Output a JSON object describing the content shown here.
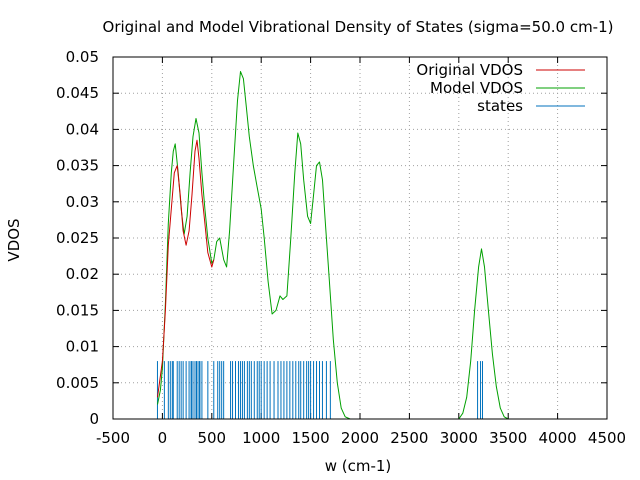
{
  "chart_data": {
    "type": "line",
    "title": "Original and Model Vibrational Density of States (sigma=50.0 cm-1)",
    "xlabel": "w (cm-1)",
    "ylabel": "VDOS",
    "xlim": [
      -500,
      4500
    ],
    "ylim": [
      0,
      0.05
    ],
    "xticks": [
      -500,
      0,
      500,
      1000,
      1500,
      2000,
      2500,
      3000,
      3500,
      4000,
      4500
    ],
    "xtick_labels": [
      "-500",
      "0",
      "500",
      "1000",
      "1500",
      "2000",
      "2500",
      "3000",
      "3500",
      "4000",
      "4500"
    ],
    "yticks": [
      0,
      0.005,
      0.01,
      0.015,
      0.02,
      0.025,
      0.03,
      0.035,
      0.04,
      0.045,
      0.05
    ],
    "ytick_labels": [
      "0",
      "0.005",
      "0.01",
      "0.015",
      "0.02",
      "0.025",
      "0.03",
      "0.035",
      "0.04",
      "0.045",
      "0.05"
    ],
    "grid": true,
    "legend_position": "top-right",
    "series": [
      {
        "name": "Original VDOS",
        "color": "#cc0000",
        "points": [
          [
            -50,
            0.003
          ],
          [
            0,
            0.008
          ],
          [
            30,
            0.015
          ],
          [
            60,
            0.024
          ],
          [
            90,
            0.029
          ],
          [
            120,
            0.034
          ],
          [
            150,
            0.035
          ],
          [
            180,
            0.031
          ],
          [
            210,
            0.026
          ],
          [
            240,
            0.024
          ],
          [
            270,
            0.026
          ],
          [
            300,
            0.031
          ],
          [
            330,
            0.037
          ],
          [
            350,
            0.0385
          ],
          [
            370,
            0.036
          ],
          [
            400,
            0.031
          ],
          [
            430,
            0.027
          ],
          [
            460,
            0.023
          ],
          [
            500,
            0.021
          ],
          [
            520,
            0.022
          ]
        ]
      },
      {
        "name": "Model VDOS",
        "color": "#00a000",
        "points": [
          [
            -50,
            0.002
          ],
          [
            -20,
            0.004
          ],
          [
            0,
            0.007
          ],
          [
            30,
            0.016
          ],
          [
            60,
            0.027
          ],
          [
            90,
            0.034
          ],
          [
            110,
            0.037
          ],
          [
            130,
            0.038
          ],
          [
            160,
            0.034
          ],
          [
            190,
            0.029
          ],
          [
            220,
            0.0255
          ],
          [
            250,
            0.028
          ],
          [
            280,
            0.034
          ],
          [
            310,
            0.039
          ],
          [
            340,
            0.0415
          ],
          [
            370,
            0.0395
          ],
          [
            400,
            0.034
          ],
          [
            430,
            0.029
          ],
          [
            460,
            0.025
          ],
          [
            500,
            0.0215
          ],
          [
            520,
            0.022
          ],
          [
            550,
            0.0245
          ],
          [
            580,
            0.025
          ],
          [
            620,
            0.022
          ],
          [
            650,
            0.021
          ],
          [
            680,
            0.026
          ],
          [
            720,
            0.035
          ],
          [
            760,
            0.044
          ],
          [
            790,
            0.048
          ],
          [
            820,
            0.047
          ],
          [
            850,
            0.043
          ],
          [
            880,
            0.039
          ],
          [
            920,
            0.035
          ],
          [
            960,
            0.032
          ],
          [
            1000,
            0.029
          ],
          [
            1030,
            0.025
          ],
          [
            1070,
            0.019
          ],
          [
            1110,
            0.0145
          ],
          [
            1150,
            0.015
          ],
          [
            1190,
            0.017
          ],
          [
            1220,
            0.0165
          ],
          [
            1260,
            0.017
          ],
          [
            1300,
            0.025
          ],
          [
            1340,
            0.034
          ],
          [
            1370,
            0.0395
          ],
          [
            1400,
            0.038
          ],
          [
            1430,
            0.033
          ],
          [
            1470,
            0.028
          ],
          [
            1500,
            0.027
          ],
          [
            1530,
            0.031
          ],
          [
            1560,
            0.035
          ],
          [
            1590,
            0.0355
          ],
          [
            1620,
            0.033
          ],
          [
            1650,
            0.027
          ],
          [
            1690,
            0.019
          ],
          [
            1730,
            0.011
          ],
          [
            1770,
            0.005
          ],
          [
            1810,
            0.0015
          ],
          [
            1850,
            0.0003
          ],
          [
            1900,
            0.0
          ],
          [
            3000,
            0.0
          ],
          [
            3040,
            0.0008
          ],
          [
            3080,
            0.003
          ],
          [
            3120,
            0.008
          ],
          [
            3160,
            0.015
          ],
          [
            3200,
            0.021
          ],
          [
            3230,
            0.0235
          ],
          [
            3260,
            0.021
          ],
          [
            3300,
            0.015
          ],
          [
            3340,
            0.009
          ],
          [
            3380,
            0.0045
          ],
          [
            3420,
            0.0015
          ],
          [
            3460,
            0.0003
          ],
          [
            3500,
            0.0
          ]
        ]
      },
      {
        "name": "states",
        "color": "#0072bd",
        "kind": "sticks",
        "height": 0.008,
        "x": [
          -50,
          20,
          60,
          80,
          100,
          110,
          150,
          170,
          190,
          210,
          240,
          270,
          290,
          300,
          320,
          340,
          350,
          370,
          380,
          400,
          460,
          520,
          560,
          580,
          600,
          620,
          690,
          710,
          740,
          770,
          790,
          810,
          830,
          860,
          880,
          900,
          930,
          960,
          980,
          1000,
          1030,
          1060,
          1090,
          1130,
          1170,
          1200,
          1230,
          1260,
          1290,
          1320,
          1350,
          1380,
          1400,
          1430,
          1460,
          1480,
          1500,
          1530,
          1560,
          1590,
          1620,
          1660,
          1700,
          3190,
          3220,
          3240
        ]
      }
    ]
  }
}
